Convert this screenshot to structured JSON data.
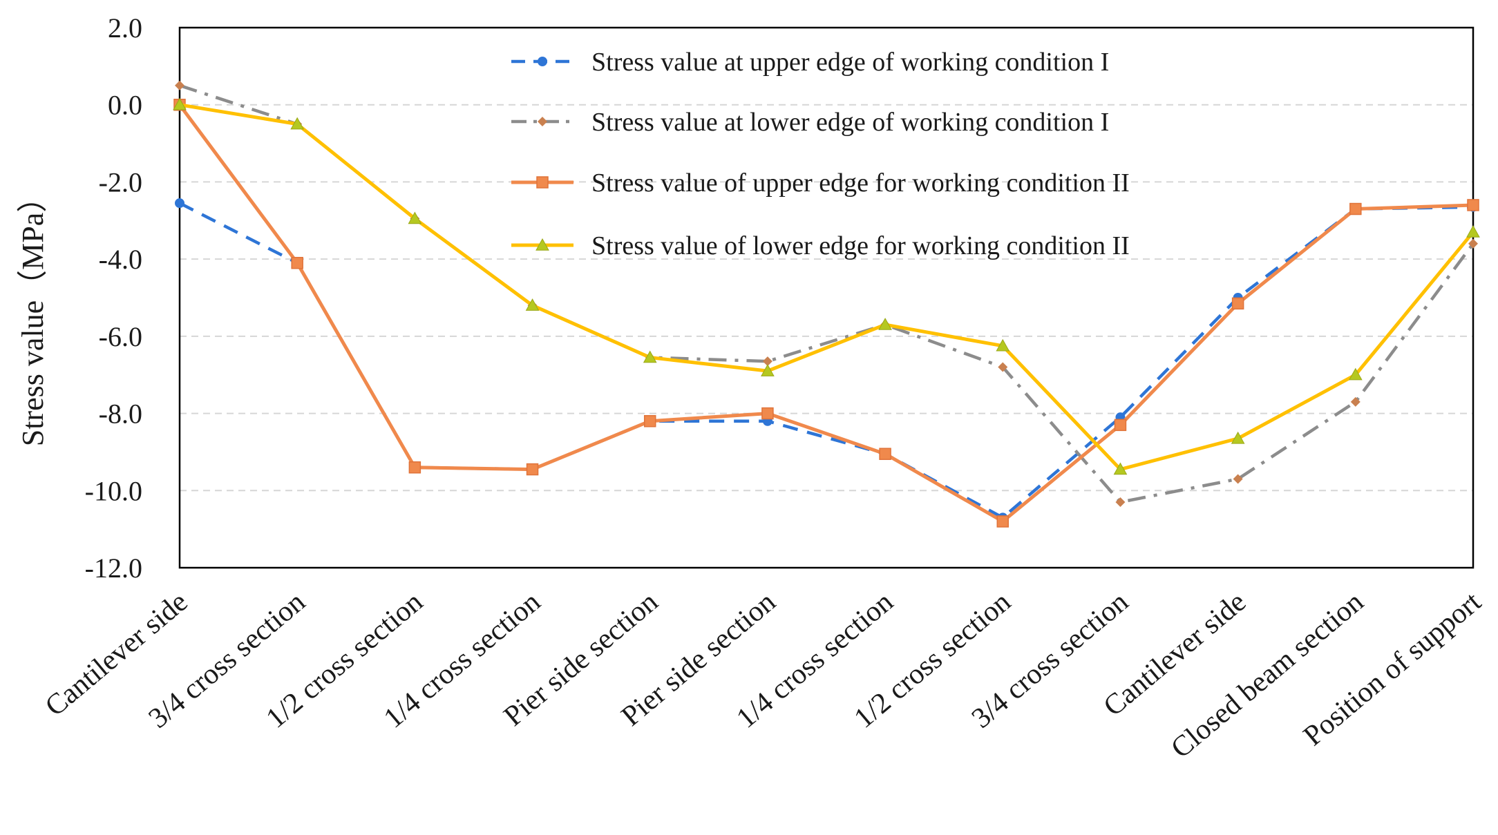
{
  "chart_data": {
    "type": "line",
    "title": "",
    "xlabel": "",
    "ylabel": "Stress value（MPa）",
    "ylim": [
      -12,
      2
    ],
    "yticks": [
      2,
      0,
      -2,
      -4,
      -6,
      -8,
      -10,
      -12
    ],
    "ytick_labels": [
      "2.0",
      "0.0",
      "-2.0",
      "-4.0",
      "-6.0",
      "-8.0",
      "-10.0",
      "-12.0"
    ],
    "grid": true,
    "legend_position": "top-right",
    "categories": [
      "Cantilever side",
      "3/4 cross section",
      "1/2 cross section",
      "1/4 cross section",
      "Pier side section",
      "Pier side section",
      "1/4 cross section",
      "1/2 cross section",
      "3/4 cross section",
      "Cantilever side",
      "Closed beam section",
      "Position of support"
    ],
    "series": [
      {
        "name": "Stress value at upper edge of working condition I",
        "color": "#2e75d6",
        "style": "dashed",
        "marker": "circle",
        "values": [
          -2.55,
          -4.1,
          -9.4,
          -9.45,
          -8.2,
          -8.2,
          -9.05,
          -10.7,
          -8.1,
          -5.0,
          -2.7,
          -2.65
        ]
      },
      {
        "name": "Stress value at lower edge of working condition I",
        "color": "#8c8c8c",
        "marker_color": "#c9804f",
        "style": "dashdot",
        "marker": "diamond",
        "values": [
          0.5,
          -0.5,
          -2.95,
          -5.2,
          -6.55,
          -6.65,
          -5.7,
          -6.8,
          -10.3,
          -9.7,
          -7.7,
          -3.6
        ]
      },
      {
        "name": "Stress value of upper edge for working condition II",
        "color": "#f0894c",
        "style": "solid",
        "marker": "square",
        "values": [
          0.0,
          -4.1,
          -9.4,
          -9.45,
          -8.2,
          -8.0,
          -9.05,
          -10.8,
          -8.3,
          -5.15,
          -2.7,
          -2.6
        ]
      },
      {
        "name": "Stress value of lower edge for working condition II",
        "color": "#ffc000",
        "marker_color": "#b5c820",
        "style": "solid",
        "marker": "triangle",
        "values": [
          0.0,
          -0.5,
          -2.95,
          -5.2,
          -6.55,
          -6.9,
          -5.7,
          -6.25,
          -9.45,
          -8.65,
          -7.0,
          -3.3
        ]
      }
    ]
  }
}
